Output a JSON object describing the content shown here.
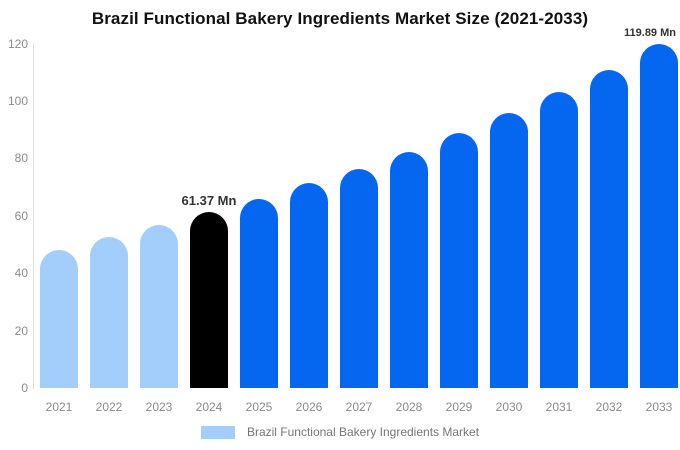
{
  "title": "Brazil Functional Bakery Ingredients Market Size (2021-2033)",
  "legend": {
    "label": "Brazil Functional Bakery Ingredients Market",
    "swatch_color": "#a3cdfa"
  },
  "colors": {
    "historical_bar": "#a3cdfa",
    "highlight_bar": "#000000",
    "forecast_bar": "#0566f0",
    "axis_line": "#dcdcdc",
    "tick_text": "#8a8a8a",
    "data_label_text": "#333333",
    "background": "#ffffff"
  },
  "chart_data": {
    "type": "bar",
    "title": "Brazil Functional Bakery Ingredients Market Size (2021-2033)",
    "categories": [
      "2021",
      "2022",
      "2023",
      "2024",
      "2025",
      "2026",
      "2027",
      "2028",
      "2029",
      "2030",
      "2031",
      "2032",
      "2033"
    ],
    "series": [
      {
        "name": "Brazil Functional Bakery Ingredients Market",
        "values": [
          48.1,
          52.6,
          56.9,
          61.37,
          65.8,
          71.3,
          76.4,
          82.4,
          88.8,
          95.7,
          103.2,
          111.0,
          119.89
        ]
      }
    ],
    "unit": "Mn",
    "xlabel": "",
    "ylabel": "",
    "ylim": [
      0,
      120
    ],
    "yticks": [
      0,
      20,
      40,
      60,
      80,
      100,
      120
    ],
    "grid": false,
    "legend_position": "bottom",
    "bar_colors": [
      "#a3cdfa",
      "#a3cdfa",
      "#a3cdfa",
      "#000000",
      "#0566f0",
      "#0566f0",
      "#0566f0",
      "#0566f0",
      "#0566f0",
      "#0566f0",
      "#0566f0",
      "#0566f0",
      "#0566f0"
    ],
    "annotations": [
      {
        "category": "2024",
        "text": "61.37 Mn"
      },
      {
        "category": "2033",
        "text": "119.89 Mn"
      }
    ]
  }
}
